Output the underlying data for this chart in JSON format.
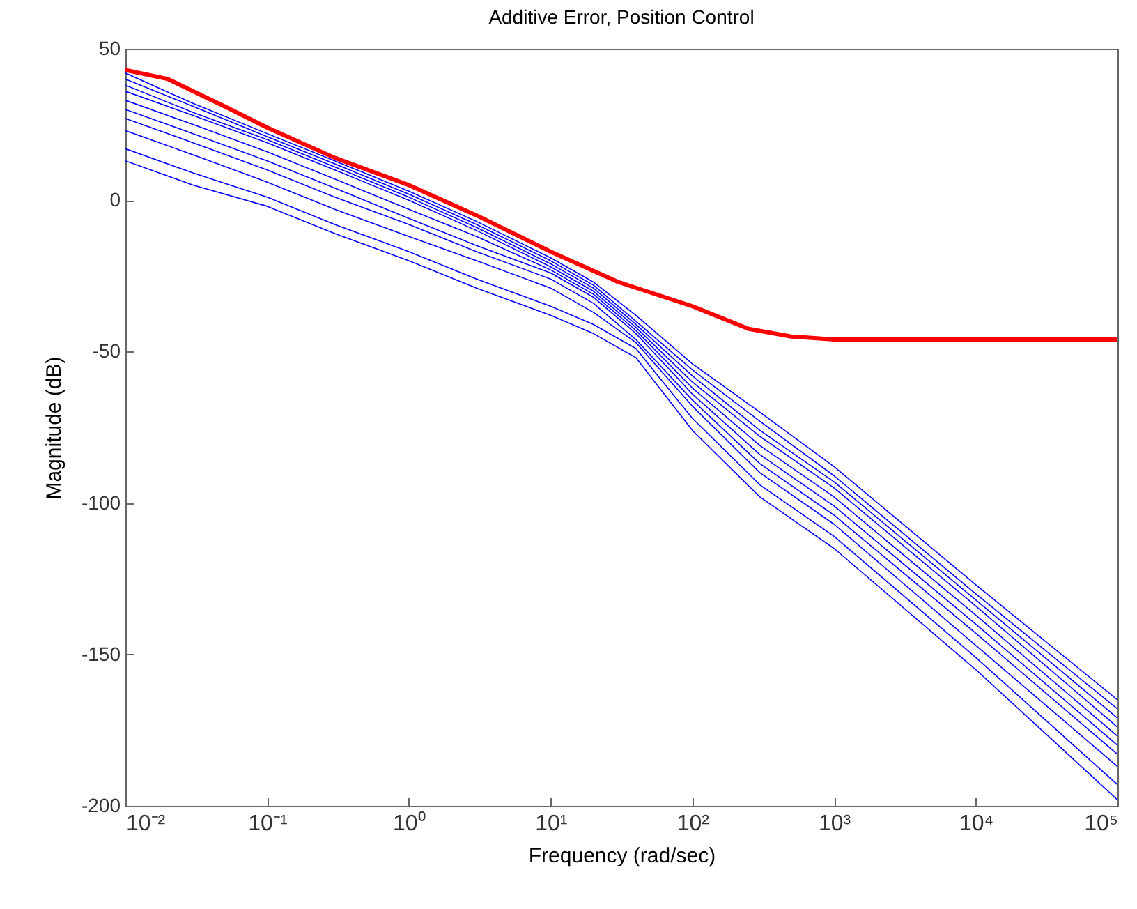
{
  "chart_data": {
    "type": "line",
    "title": "Additive Error, Position Control",
    "xlabel": "Frequency  (rad/sec)",
    "ylabel": "Magnitude (dB)",
    "log": "x",
    "grid": false,
    "legend": false,
    "line_style": "solid",
    "marker": "none",
    "x": [
      0.01,
      0.03,
      0.1,
      0.3,
      1,
      3,
      10,
      20,
      40,
      100,
      300,
      1000,
      10000,
      100000
    ],
    "xlim": [
      0.01,
      100000
    ],
    "xticks": [
      {
        "value": 0.01,
        "label": "10⁻²"
      },
      {
        "value": 0.1,
        "label": "10⁻¹"
      },
      {
        "value": 1,
        "label": "10⁰"
      },
      {
        "value": 10,
        "label": "10¹"
      },
      {
        "value": 100,
        "label": "10²"
      },
      {
        "value": 1000,
        "label": "10³"
      },
      {
        "value": 10000,
        "label": "10⁴"
      },
      {
        "value": 100000,
        "label": "10⁵"
      }
    ],
    "ylim": [
      -200,
      50
    ],
    "yticks": [
      -200,
      -150,
      -100,
      -50,
      0,
      50
    ],
    "series": [
      {
        "color": "#0000ff",
        "values": [
          42,
          32,
          22,
          13,
          3,
          -7,
          -19,
          -27,
          -38,
          -54,
          -70,
          -88,
          -127,
          -165
        ]
      },
      {
        "color": "#0000ff",
        "values": [
          40,
          31,
          21,
          12,
          2,
          -8,
          -20,
          -28,
          -40,
          -56,
          -73,
          -91,
          -130,
          -168
        ]
      },
      {
        "color": "#0000ff",
        "values": [
          38,
          29,
          20,
          11,
          1,
          -9,
          -21,
          -29,
          -41,
          -58,
          -76,
          -93,
          -132,
          -171
        ]
      },
      {
        "color": "#0000ff",
        "values": [
          36,
          28,
          19,
          10,
          0,
          -10,
          -22,
          -30,
          -42,
          -60,
          -78,
          -95,
          -134,
          -174
        ]
      },
      {
        "color": "#0000ff",
        "values": [
          33,
          25,
          16,
          7,
          -3,
          -12,
          -23,
          -31,
          -43,
          -62,
          -81,
          -98,
          -137,
          -177
        ]
      },
      {
        "color": "#0000ff",
        "values": [
          30,
          22,
          13,
          4,
          -6,
          -15,
          -24,
          -32,
          -44,
          -64,
          -84,
          -101,
          -140,
          -180
        ]
      },
      {
        "color": "#0000ff",
        "values": [
          27,
          19,
          10,
          1,
          -8,
          -17,
          -26,
          -34,
          -46,
          -66,
          -87,
          -104,
          -143,
          -183
        ]
      },
      {
        "color": "#0000ff",
        "values": [
          23,
          15,
          6,
          -3,
          -12,
          -20,
          -29,
          -37,
          -47,
          -68,
          -90,
          -107,
          -147,
          -187
        ]
      },
      {
        "color": "#0000ff",
        "values": [
          17,
          9,
          1,
          -8,
          -17,
          -26,
          -35,
          -41,
          -49,
          -72,
          -94,
          -111,
          -151,
          -193
        ]
      },
      {
        "color": "#0000ff",
        "values": [
          13,
          5,
          -2,
          -11,
          -20,
          -29,
          -38,
          -44,
          -52,
          -76,
          -98,
          -115,
          -155,
          -198
        ]
      },
      {
        "color": "#ff0000",
        "x": [
          0.01,
          0.02,
          0.05,
          0.1,
          0.3,
          1,
          3,
          10,
          30,
          100,
          250,
          500,
          700,
          1000,
          100000
        ],
        "values": [
          43,
          40,
          31,
          24,
          14,
          5,
          -5,
          -17,
          -27,
          -35,
          -42.5,
          -45,
          -45.5,
          -46,
          -46
        ]
      }
    ]
  }
}
